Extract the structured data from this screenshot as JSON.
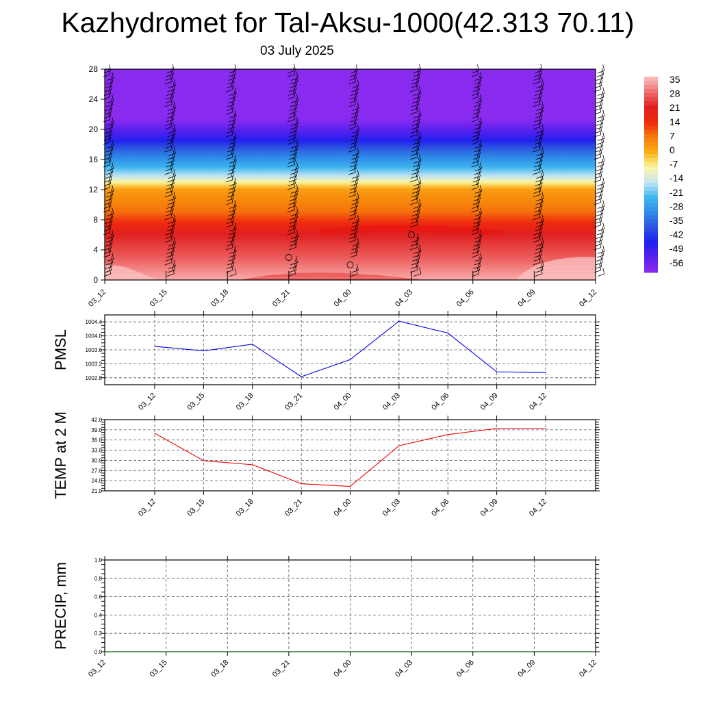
{
  "title": "Kazhydromet for Tal-Aksu-1000(42.313 70.11)",
  "subtitle": "03 July 2025",
  "chart_data": [
    {
      "type": "heatmap",
      "name": "temperature cross-section",
      "y_ticks": [
        "0",
        "4",
        "8",
        "12",
        "16",
        "20",
        "24",
        "28"
      ],
      "ylim": [
        0,
        28
      ],
      "x_ticks": [
        "03_12",
        "03_15",
        "03_18",
        "03_21",
        "04_00",
        "04_03",
        "04_06",
        "04_09",
        "04_12"
      ],
      "colorbar_labels": [
        "35",
        "28",
        "21",
        "14",
        "7",
        "0",
        "-7",
        "-14",
        "-21",
        "-28",
        "-35",
        "-42",
        "-49",
        "-56"
      ],
      "color_stops": [
        "#fcc0c0",
        "#f07070",
        "#e02020",
        "#ee2a0e",
        "#f67a0c",
        "#faad14",
        "#fdf5a0",
        "#c8e6f4",
        "#3fb8f0",
        "#2d8ce8",
        "#2d55e0",
        "#2020ee",
        "#5a20ee",
        "#8a2bf0"
      ],
      "level_temps": [
        {
          "level": 0,
          "temp": 33
        },
        {
          "level": 3,
          "temp": 26
        },
        {
          "level": 6,
          "temp": 21
        },
        {
          "level": 9,
          "temp": 8
        },
        {
          "level": 12,
          "temp": 2
        },
        {
          "level": 13.5,
          "temp": -12
        },
        {
          "level": 15,
          "temp": -22
        },
        {
          "level": 17,
          "temp": -32
        },
        {
          "level": 19,
          "temp": -45
        },
        {
          "level": 20.5,
          "temp": -52
        },
        {
          "level": 22,
          "temp": -60
        },
        {
          "level": 28,
          "temp": -60
        }
      ],
      "calm_markers": [
        {
          "time": "03_21",
          "level": 3
        },
        {
          "time": "04_00",
          "level": 2
        },
        {
          "time": "04_03",
          "level": 6
        }
      ]
    },
    {
      "type": "line",
      "ylabel": "PMSL",
      "ylim": [
        1002.6,
        1004.6
      ],
      "y_ticks": [
        "1002.8",
        "1003.2",
        "1003.6",
        "1004.0",
        "1004.4"
      ],
      "categories": [
        "03_12",
        "03_15",
        "03_18",
        "03_21",
        "04_00",
        "04_03",
        "04_06",
        "04_09",
        "04_12"
      ],
      "values": [
        1003.7,
        1003.57,
        1003.76,
        1002.83,
        1003.32,
        1004.42,
        1004.08,
        1002.97,
        1002.95
      ],
      "color": "#0000ee"
    },
    {
      "type": "line",
      "ylabel": "TEMP at 2 M",
      "ylim": [
        21.0,
        42.0
      ],
      "y_ticks": [
        "21.0",
        "24.0",
        "27.0",
        "30.0",
        "33.0",
        "36.0",
        "39.0",
        "42.0"
      ],
      "categories": [
        "03_12",
        "03_15",
        "03_18",
        "03_21",
        "04_00",
        "04_03",
        "04_06",
        "04_09",
        "04_12"
      ],
      "values": [
        38.0,
        29.9,
        28.7,
        23.1,
        22.3,
        34.3,
        37.6,
        39.4,
        39.4
      ],
      "color": "#ee0000"
    },
    {
      "type": "line",
      "ylabel": "PRECIP, mm",
      "ylim": [
        0.0,
        1.0
      ],
      "y_ticks": [
        "0.0",
        "0.2",
        "0.4",
        "0.6",
        "0.8",
        "1.0"
      ],
      "x_ticks": [
        "03_12",
        "03_15",
        "03_18",
        "03_21",
        "04_00",
        "04_03",
        "04_06",
        "04_09",
        "04_12"
      ],
      "values": [
        0,
        0,
        0,
        0,
        0,
        0,
        0,
        0,
        0
      ],
      "color": "#006400"
    }
  ]
}
